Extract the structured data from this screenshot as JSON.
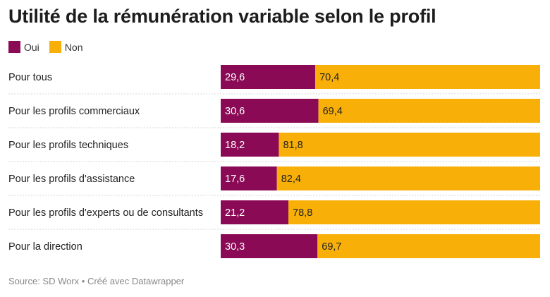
{
  "title": "Utilité de la rémunération variable selon le profil",
  "legend": [
    {
      "label": "Oui",
      "color": "#8b0a55"
    },
    {
      "label": "Non",
      "color": "#f8b009"
    }
  ],
  "source": "Source: SD Worx • Créé avec Datawrapper",
  "chart_data": {
    "type": "bar",
    "orientation": "horizontal",
    "stacked": true,
    "categories": [
      "Pour tous",
      "Pour les profils commerciaux",
      "Pour les profils techniques",
      "Pour les profils d'assistance",
      "Pour les profils d'experts ou de consultants",
      "Pour la direction"
    ],
    "series": [
      {
        "name": "Oui",
        "color": "#8b0a55",
        "values": [
          29.6,
          30.6,
          18.2,
          17.6,
          21.2,
          30.3
        ],
        "labels": [
          "29,6",
          "30,6",
          "18,2",
          "17,6",
          "21,2",
          "30,3"
        ]
      },
      {
        "name": "Non",
        "color": "#f8b009",
        "values": [
          70.4,
          69.4,
          81.8,
          82.4,
          78.8,
          69.7
        ],
        "labels": [
          "70,4",
          "69,4",
          "81,8",
          "82,4",
          "78,8",
          "69,7"
        ]
      }
    ],
    "xlim": [
      0,
      100
    ],
    "grid": false,
    "legend_position": "top-left"
  }
}
